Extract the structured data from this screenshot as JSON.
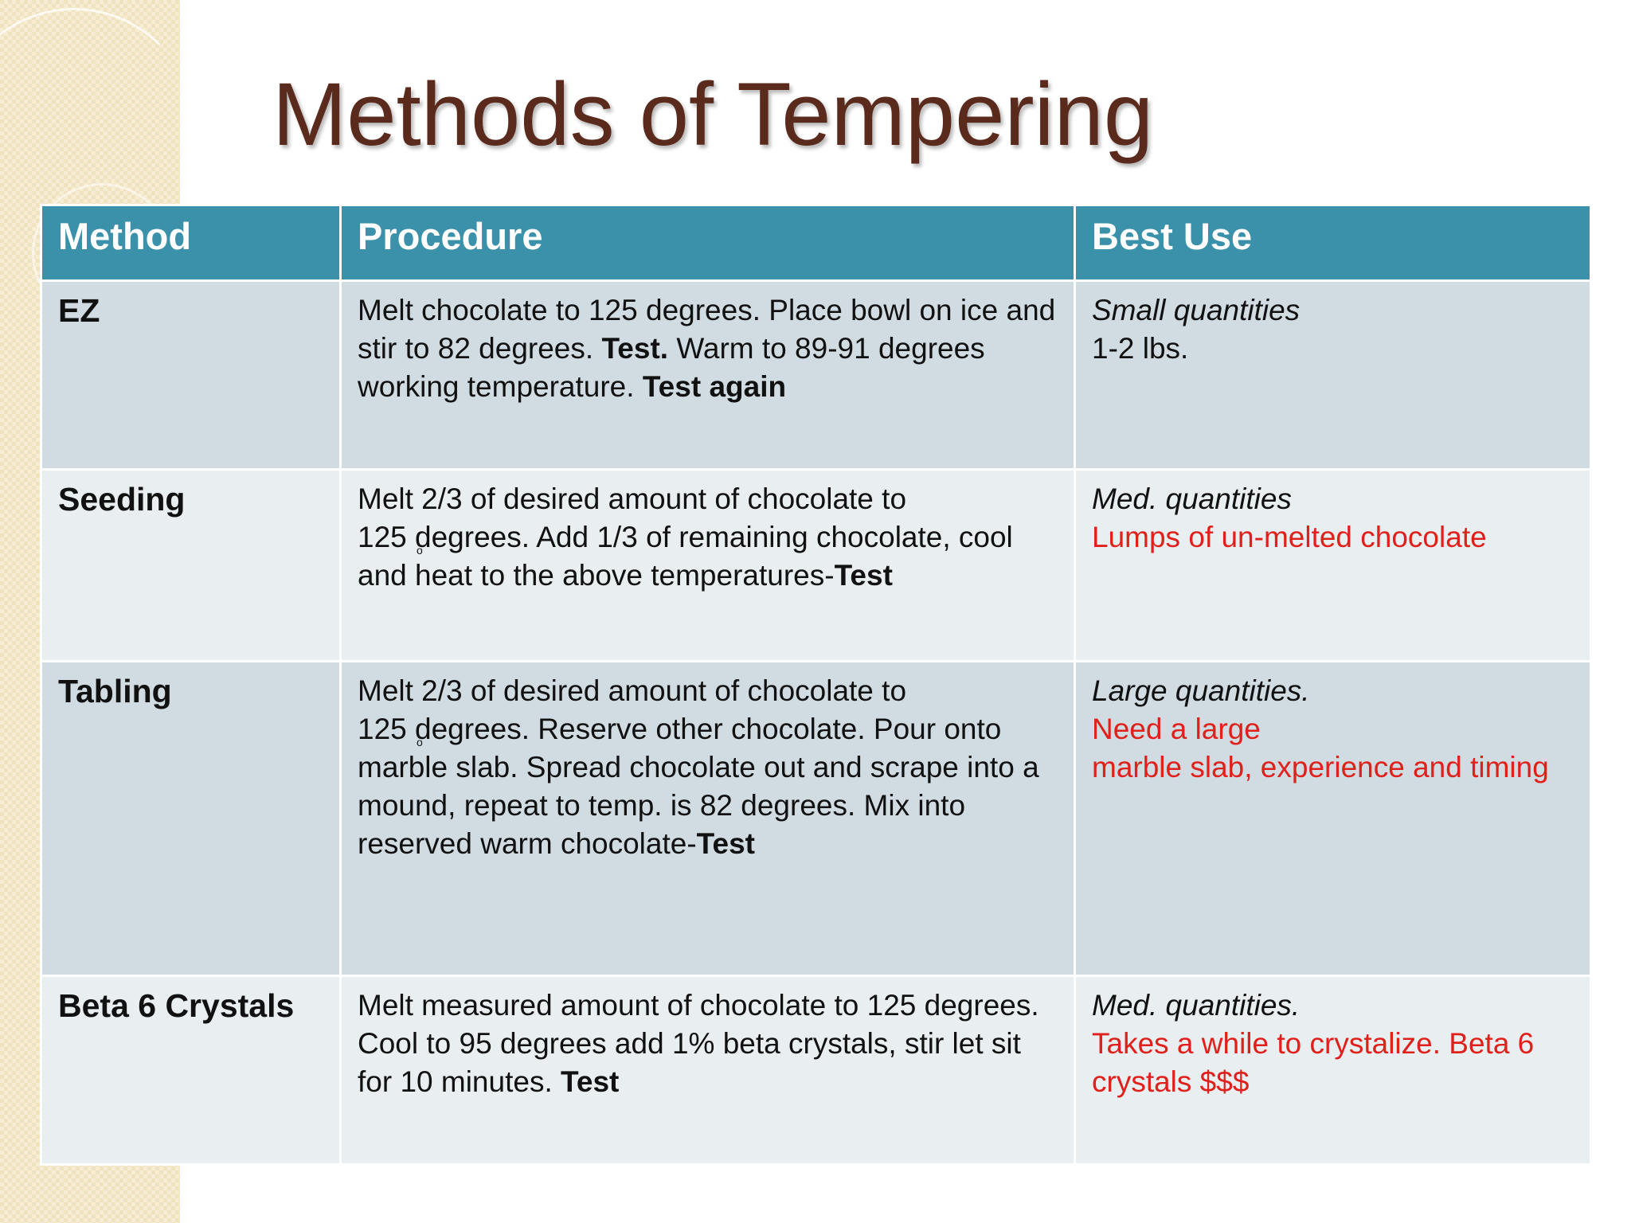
{
  "slide": {
    "title": "Methods of Tempering"
  },
  "table": {
    "headers": {
      "method": "Method",
      "procedure": "Procedure",
      "best_use": "Best Use"
    },
    "rows": [
      {
        "method": "EZ",
        "procedure": {
          "p1": "Melt chocolate to 125 degrees. Place bowl on ice and stir to 82 degrees. ",
          "b1": "Test.",
          "p2": " Warm to 89-91 degrees working temperature. ",
          "b2": "Test again"
        },
        "best_use": {
          "italic": "Small quantities",
          "plain": "1-2 lbs."
        }
      },
      {
        "method": "Seeding",
        "procedure": {
          "p1": "Melt 2/3 of desired amount of chocolate to",
          "p2": "125 degrees. Add 1/3 of remaining chocolate, cool and heat to the above temperatures-",
          "b1": "Test",
          "degree_mark": "o"
        },
        "best_use": {
          "italic": "Med. quantities",
          "red": "Lumps of un-melted chocolate"
        }
      },
      {
        "method": "Tabling",
        "procedure": {
          "p1": "Melt 2/3 of desired amount of chocolate to",
          "p2": "125 degrees. Reserve other chocolate. Pour onto marble slab. Spread chocolate out and scrape into a mound, repeat to temp. is 82 degrees. Mix into reserved warm chocolate-",
          "b1": "Test",
          "degree_mark": "o"
        },
        "best_use": {
          "italic": "Large quantities.",
          "red1": "Need  a large",
          "red2": "marble slab, experience and timing"
        }
      },
      {
        "method": "Beta 6 Crystals",
        "procedure": {
          "p1": "Melt measured amount of chocolate to 125 degrees. Cool to 95 degrees add 1% beta crystals, stir let sit for 10 minutes. ",
          "b1": "Test"
        },
        "best_use": {
          "italic": "Med. quantities.",
          "red": "Takes a while to crystalize. Beta 6 crystals $$$"
        }
      }
    ]
  },
  "colors": {
    "header_bg": "#3a91a9",
    "row_dark": "#d0dce1",
    "row_light": "#e9eef1",
    "title": "#5a2a1c",
    "accent_red": "#e0201b"
  }
}
